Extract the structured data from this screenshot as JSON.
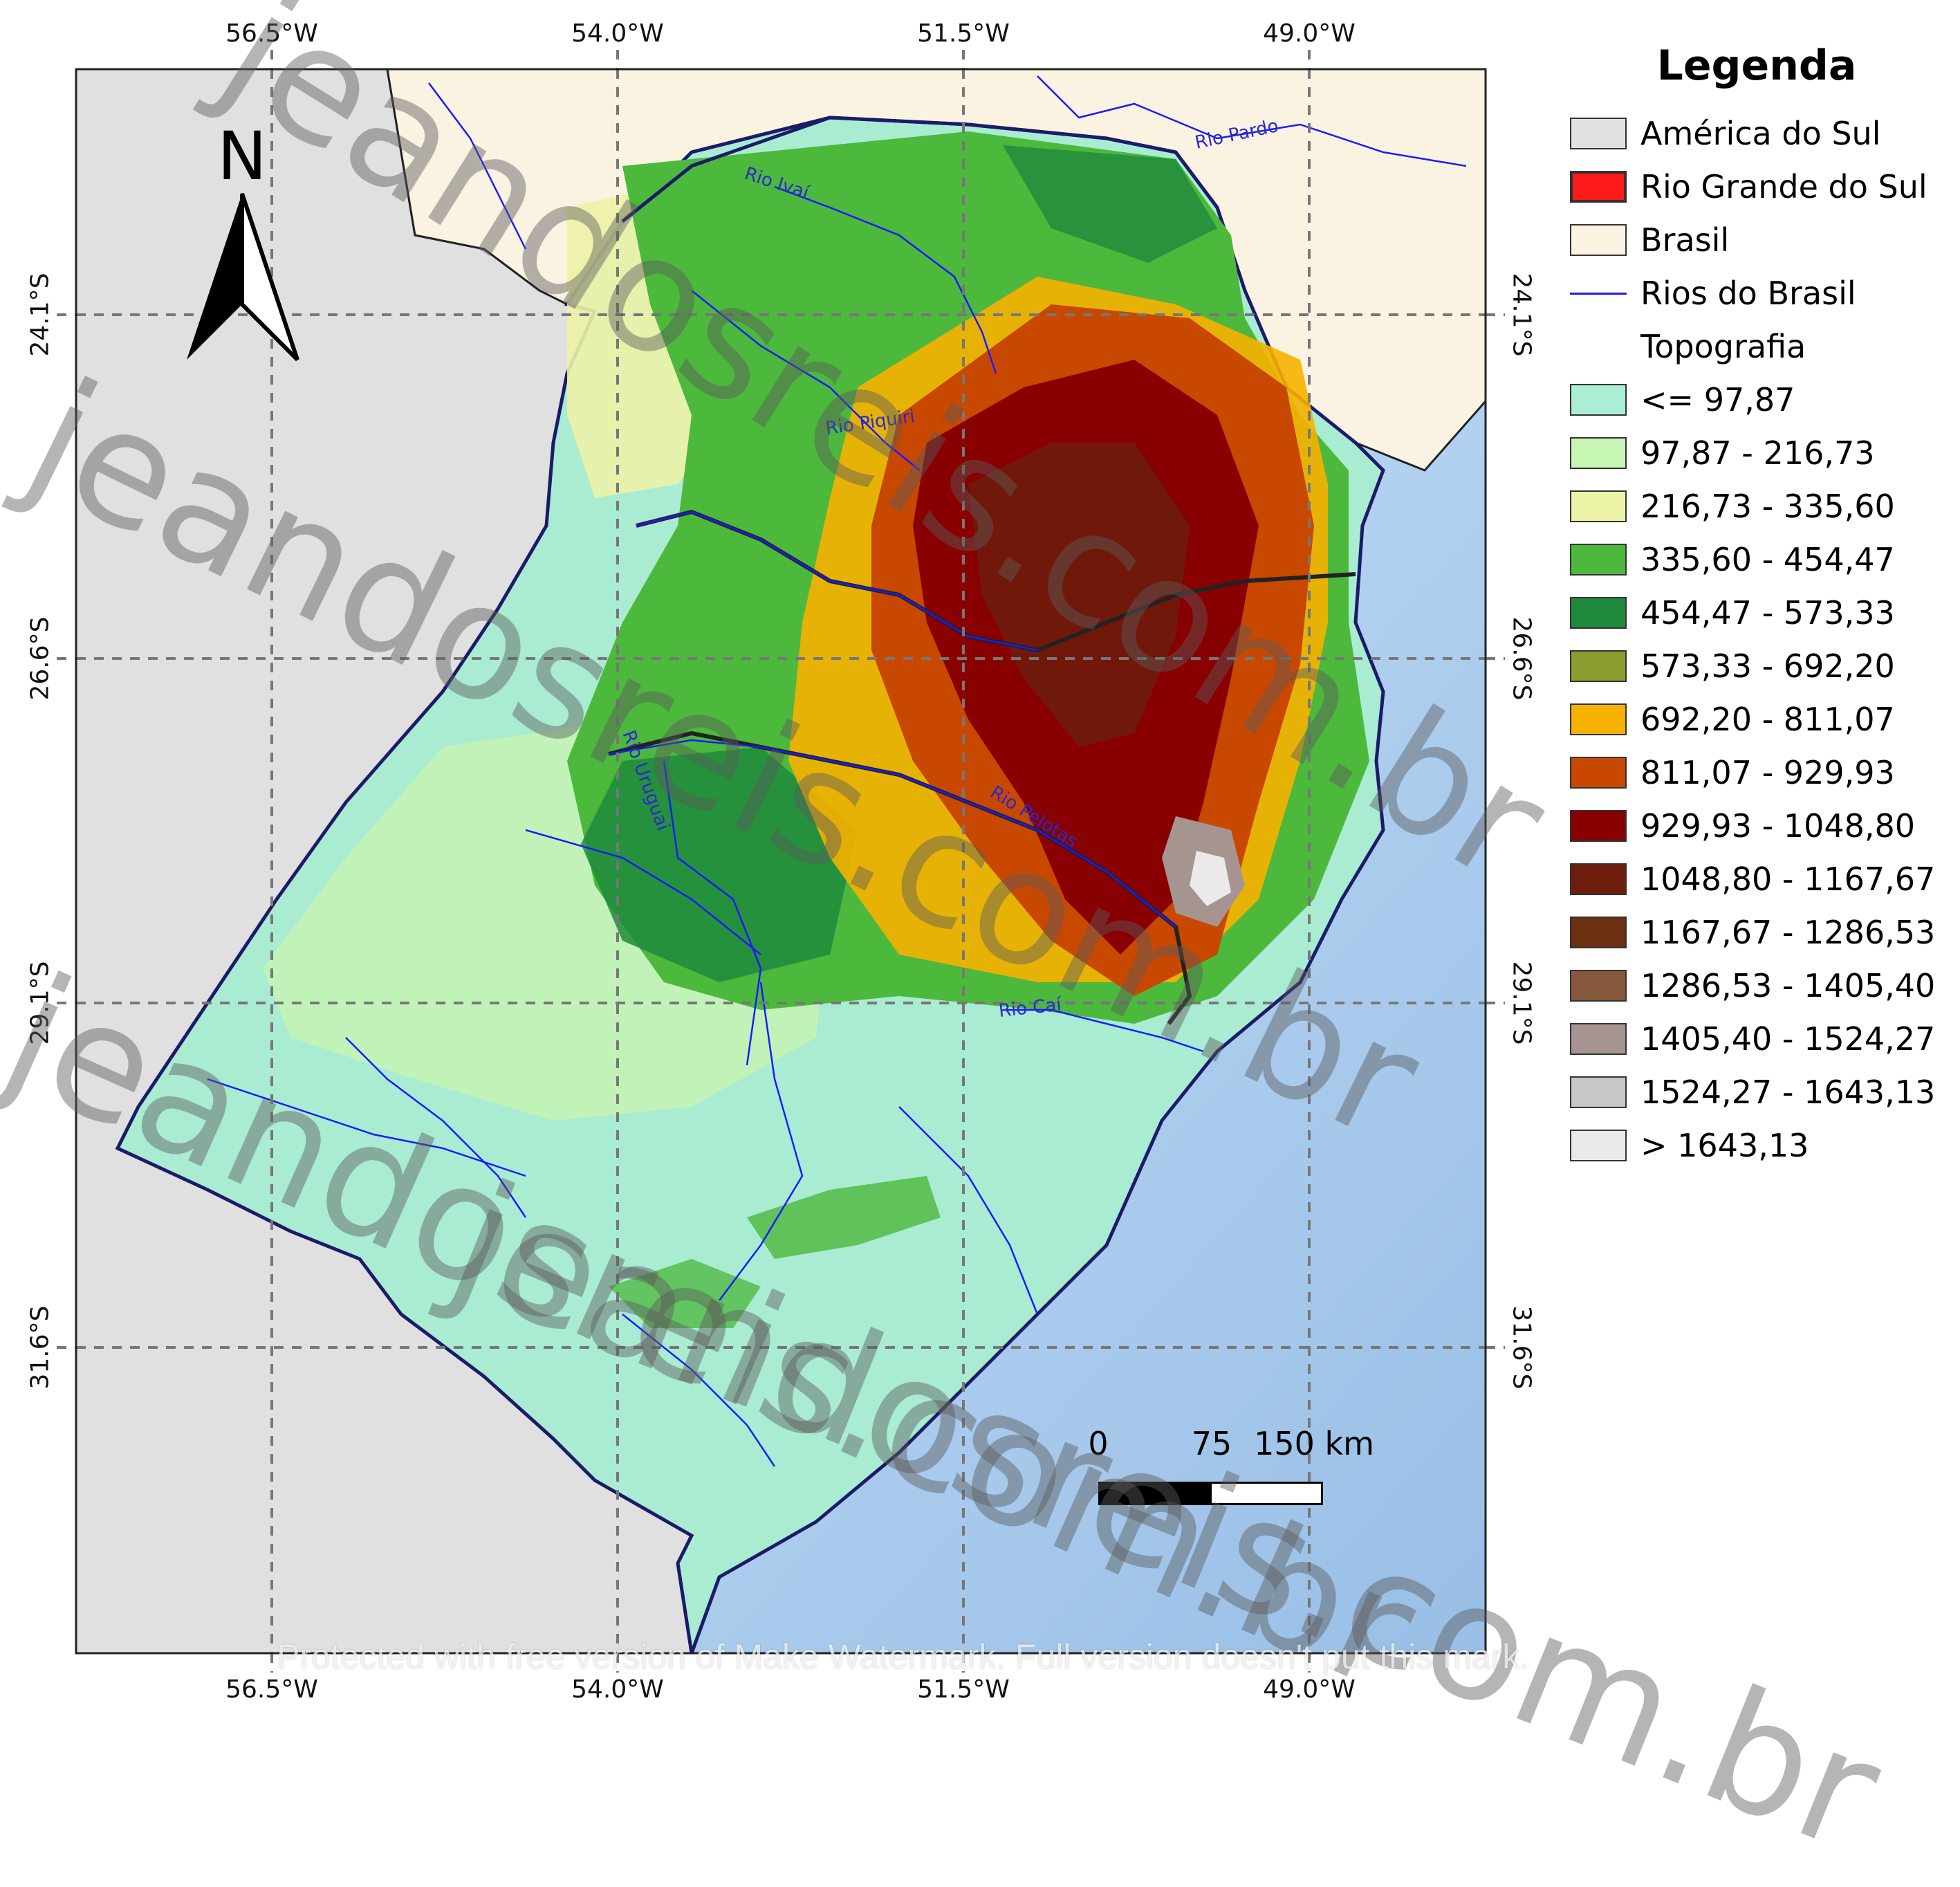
{
  "map": {
    "colors": {
      "sea": "#b4d2f0",
      "south_america": "#e0e0e0",
      "brasil": "#faf3e2",
      "rivers": "#1a1aff",
      "grid": "#777777",
      "state_border": "#222222"
    }
  },
  "coords": {
    "top": [
      "56.5°W",
      "54.0°W",
      "51.5°W",
      "49.0°W"
    ],
    "bottom": [
      "56.5°W",
      "54.0°W",
      "51.5°W",
      "49.0°W"
    ],
    "left": [
      "24.1°S",
      "26.6°S",
      "29.1°S",
      "31.6°S"
    ],
    "right": [
      "24.1°S",
      "26.6°S",
      "29.1°S",
      "31.6°S"
    ]
  },
  "rivers": [
    "Rio Pardo",
    "Rio Ivaí",
    "Rio Piquiri",
    "Rio Uruguai",
    "Rio Pelotas",
    "Rio Caí"
  ],
  "north_arrow": {
    "label": "N"
  },
  "scale_bar": {
    "ticks": [
      "0",
      "75",
      "150 km"
    ]
  },
  "legend": {
    "title": "Legenda",
    "items": [
      {
        "label": "América do Sul",
        "color": "#e0e0e0",
        "kind": "box"
      },
      {
        "label": "Rio Grande do Sul",
        "color": "#ff1a1a",
        "kind": "box"
      },
      {
        "label": "Brasil",
        "color": "#faf3e2",
        "kind": "box"
      },
      {
        "label": "Rios do Brasil",
        "color": "#1a1aff",
        "kind": "line"
      },
      {
        "label": "Topografia",
        "color": "",
        "kind": "none"
      },
      {
        "label": "<= 97,87",
        "color": "#aaeed3",
        "kind": "box"
      },
      {
        "label": "97,87 - 216,73",
        "color": "#c6f5b4",
        "kind": "box"
      },
      {
        "label": "216,73 - 335,60",
        "color": "#ecf2a6",
        "kind": "box"
      },
      {
        "label": "335,60 - 454,47",
        "color": "#4cb83c",
        "kind": "box"
      },
      {
        "label": "454,47 - 573,33",
        "color": "#1f8a3c",
        "kind": "box"
      },
      {
        "label": "573,33 - 692,20",
        "color": "#8c9c2e",
        "kind": "box"
      },
      {
        "label": "692,20 - 811,07",
        "color": "#f7b100",
        "kind": "box"
      },
      {
        "label": "811,07 - 929,93",
        "color": "#c84800",
        "kind": "box"
      },
      {
        "label": "929,93 - 1048,80",
        "color": "#880000",
        "kind": "box"
      },
      {
        "label": "1048,80 - 1167,67",
        "color": "#6e1c0c",
        "kind": "box"
      },
      {
        "label": "1167,67 - 1286,53",
        "color": "#6b3012",
        "kind": "box"
      },
      {
        "label": "1286,53 - 1405,40",
        "color": "#85573d",
        "kind": "box"
      },
      {
        "label": "1405,40 - 1524,27",
        "color": "#a69490",
        "kind": "box"
      },
      {
        "label": "1524,27 - 1643,13",
        "color": "#c9c7c6",
        "kind": "box"
      },
      {
        "label": "> 1643,13",
        "color": "#ebe9ea",
        "kind": "box"
      }
    ]
  },
  "watermarks": {
    "lines": [
      "jeandosreis.com.br",
      "jeandosreis.com.br",
      "jeandosreis.com.br",
      "jeandosreis.com.br"
    ],
    "footer": "Protected with free version of Make Watermark. Full version doesn't put this mark."
  }
}
